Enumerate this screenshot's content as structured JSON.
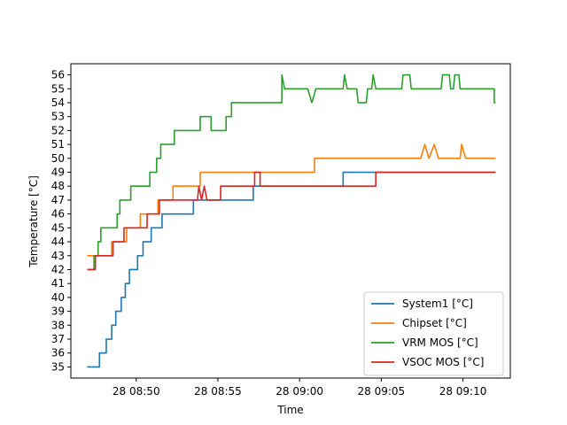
{
  "chart_data": {
    "type": "line",
    "title": "",
    "xlabel": "Time",
    "ylabel": "Temperature [°C]",
    "x_range": [
      "08:46:00",
      "09:12:54"
    ],
    "x_ticks": [
      "28 08:50",
      "28 08:55",
      "28 09:00",
      "28 09:05",
      "28 09:10"
    ],
    "y_range": [
      34.2,
      56.8
    ],
    "y_ticks": [
      35,
      36,
      37,
      38,
      39,
      40,
      41,
      42,
      43,
      44,
      45,
      46,
      47,
      48,
      49,
      50,
      51,
      52,
      53,
      54,
      55,
      56
    ],
    "grid": false,
    "legend_position": "lower-right",
    "series": [
      {
        "name": "System1 [°C]",
        "color": "#1f77b4",
        "points": [
          [
            "08:47:00",
            35
          ],
          [
            "08:47:45",
            35
          ],
          [
            "08:47:45",
            36
          ],
          [
            "08:48:10",
            36
          ],
          [
            "08:48:10",
            37
          ],
          [
            "08:48:30",
            37
          ],
          [
            "08:48:30",
            38
          ],
          [
            "08:48:45",
            38
          ],
          [
            "08:48:45",
            39
          ],
          [
            "08:49:05",
            39
          ],
          [
            "08:49:05",
            40
          ],
          [
            "08:49:20",
            40
          ],
          [
            "08:49:20",
            41
          ],
          [
            "08:49:35",
            41
          ],
          [
            "08:49:35",
            42
          ],
          [
            "08:50:05",
            42
          ],
          [
            "08:50:05",
            43
          ],
          [
            "08:50:25",
            43
          ],
          [
            "08:50:25",
            44
          ],
          [
            "08:50:55",
            44
          ],
          [
            "08:50:55",
            45
          ],
          [
            "08:51:35",
            45
          ],
          [
            "08:51:35",
            46
          ],
          [
            "08:53:30",
            46
          ],
          [
            "08:53:30",
            47
          ],
          [
            "08:57:10",
            47
          ],
          [
            "08:57:10",
            48
          ],
          [
            "09:02:40",
            48
          ],
          [
            "09:02:40",
            49
          ],
          [
            "09:12:00",
            49
          ]
        ]
      },
      {
        "name": "Chipset [°C]",
        "color": "#ff7f0e",
        "points": [
          [
            "08:47:00",
            43
          ],
          [
            "08:48:30",
            43
          ],
          [
            "08:48:30",
            44
          ],
          [
            "08:49:25",
            44
          ],
          [
            "08:49:25",
            45
          ],
          [
            "08:50:15",
            45
          ],
          [
            "08:50:15",
            46
          ],
          [
            "08:51:20",
            46
          ],
          [
            "08:51:20",
            47
          ],
          [
            "08:52:15",
            47
          ],
          [
            "08:52:15",
            48
          ],
          [
            "08:53:55",
            48
          ],
          [
            "08:53:55",
            49
          ],
          [
            "09:00:55",
            49
          ],
          [
            "09:00:55",
            50
          ],
          [
            "09:07:25",
            50
          ],
          [
            "09:07:40",
            51
          ],
          [
            "09:07:55",
            50
          ],
          [
            "09:08:15",
            51
          ],
          [
            "09:08:30",
            50
          ],
          [
            "09:09:50",
            50
          ],
          [
            "09:09:55",
            51
          ],
          [
            "09:10:10",
            50
          ],
          [
            "09:12:00",
            50
          ]
        ]
      },
      {
        "name": "VRM MOS [°C]",
        "color": "#2ca02c",
        "points": [
          [
            "08:47:00",
            42
          ],
          [
            "08:47:25",
            42
          ],
          [
            "08:47:25",
            43
          ],
          [
            "08:47:40",
            43
          ],
          [
            "08:47:40",
            44
          ],
          [
            "08:47:50",
            44
          ],
          [
            "08:47:50",
            45
          ],
          [
            "08:48:50",
            45
          ],
          [
            "08:48:50",
            46
          ],
          [
            "08:49:00",
            46
          ],
          [
            "08:49:00",
            47
          ],
          [
            "08:49:40",
            47
          ],
          [
            "08:49:40",
            48
          ],
          [
            "08:50:50",
            48
          ],
          [
            "08:50:50",
            49
          ],
          [
            "08:51:15",
            49
          ],
          [
            "08:51:15",
            50
          ],
          [
            "08:51:30",
            50
          ],
          [
            "08:51:30",
            51
          ],
          [
            "08:52:20",
            51
          ],
          [
            "08:52:20",
            52
          ],
          [
            "08:53:55",
            52
          ],
          [
            "08:53:55",
            53
          ],
          [
            "08:54:35",
            53
          ],
          [
            "08:54:35",
            52
          ],
          [
            "08:55:30",
            52
          ],
          [
            "08:55:30",
            53
          ],
          [
            "08:55:50",
            53
          ],
          [
            "08:55:50",
            54
          ],
          [
            "08:58:55",
            54
          ],
          [
            "08:58:55",
            56
          ],
          [
            "08:59:05",
            55
          ],
          [
            "09:00:30",
            55
          ],
          [
            "09:00:45",
            54
          ],
          [
            "09:01:00",
            55
          ],
          [
            "09:02:40",
            55
          ],
          [
            "09:02:45",
            56
          ],
          [
            "09:02:55",
            55
          ],
          [
            "09:03:30",
            55
          ],
          [
            "09:03:35",
            54
          ],
          [
            "09:04:05",
            54
          ],
          [
            "09:04:10",
            55
          ],
          [
            "09:04:25",
            55
          ],
          [
            "09:04:30",
            56
          ],
          [
            "09:04:40",
            55
          ],
          [
            "09:06:15",
            55
          ],
          [
            "09:06:20",
            56
          ],
          [
            "09:06:45",
            56
          ],
          [
            "09:06:50",
            55
          ],
          [
            "09:08:40",
            55
          ],
          [
            "09:08:45",
            56
          ],
          [
            "09:09:10",
            56
          ],
          [
            "09:09:15",
            55
          ],
          [
            "09:09:25",
            55
          ],
          [
            "09:09:30",
            56
          ],
          [
            "09:09:45",
            56
          ],
          [
            "09:09:50",
            55
          ],
          [
            "09:11:55",
            55
          ],
          [
            "09:11:55",
            54
          ],
          [
            "09:12:00",
            54
          ]
        ]
      },
      {
        "name": "VSOC MOS [°C]",
        "color": "#d62728",
        "points": [
          [
            "08:47:00",
            42
          ],
          [
            "08:47:30",
            42
          ],
          [
            "08:47:30",
            43
          ],
          [
            "08:48:35",
            43
          ],
          [
            "08:48:35",
            44
          ],
          [
            "08:49:15",
            44
          ],
          [
            "08:49:15",
            45
          ],
          [
            "08:50:40",
            45
          ],
          [
            "08:50:40",
            46
          ],
          [
            "08:51:25",
            46
          ],
          [
            "08:51:25",
            47
          ],
          [
            "08:53:45",
            47
          ],
          [
            "08:53:50",
            48
          ],
          [
            "08:54:00",
            47
          ],
          [
            "08:54:10",
            48
          ],
          [
            "08:54:20",
            47
          ],
          [
            "08:55:10",
            47
          ],
          [
            "08:55:10",
            48
          ],
          [
            "08:57:15",
            48
          ],
          [
            "08:57:15",
            49
          ],
          [
            "08:57:35",
            49
          ],
          [
            "08:57:35",
            48
          ],
          [
            "09:04:40",
            48
          ],
          [
            "09:04:40",
            49
          ],
          [
            "09:12:00",
            49
          ]
        ]
      }
    ]
  }
}
